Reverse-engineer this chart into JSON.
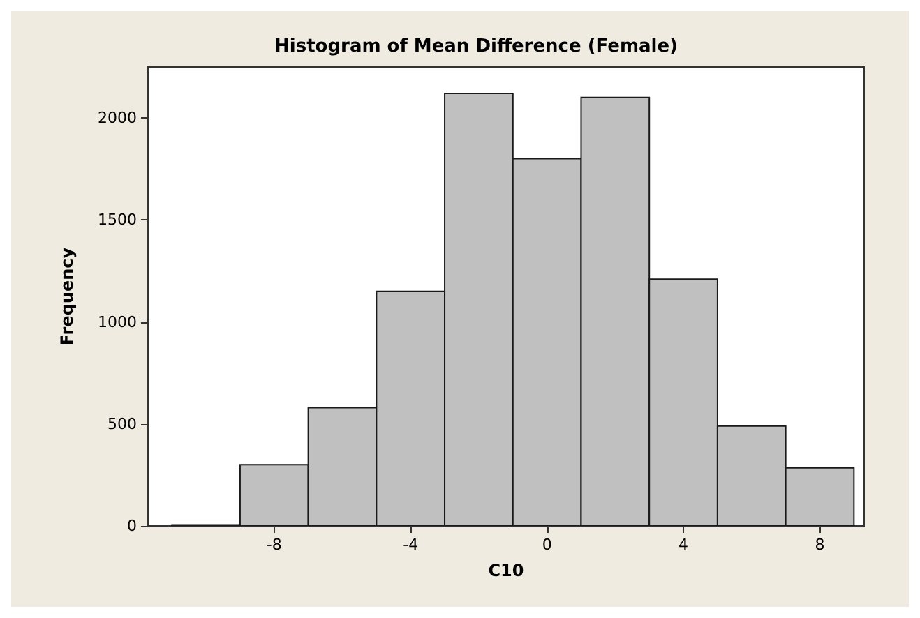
{
  "chart_data": {
    "type": "histogram",
    "title": "Histogram of Mean Difference (Female)",
    "xlabel": "C10",
    "ylabel": "Frequency",
    "bins": [
      -11,
      -9,
      -7,
      -5,
      -3,
      -1,
      1,
      3,
      5,
      7,
      9
    ],
    "values": [
      5,
      300,
      580,
      1150,
      2120,
      1800,
      2100,
      1210,
      490,
      285
    ],
    "color": "#c0c0c0",
    "xlim": [
      -11.7,
      9.3
    ],
    "xticks": [
      -8,
      -4,
      0,
      4,
      8
    ],
    "ylim": [
      0,
      2250
    ],
    "yticks": [
      0,
      500,
      1000,
      1500,
      2000
    ]
  }
}
